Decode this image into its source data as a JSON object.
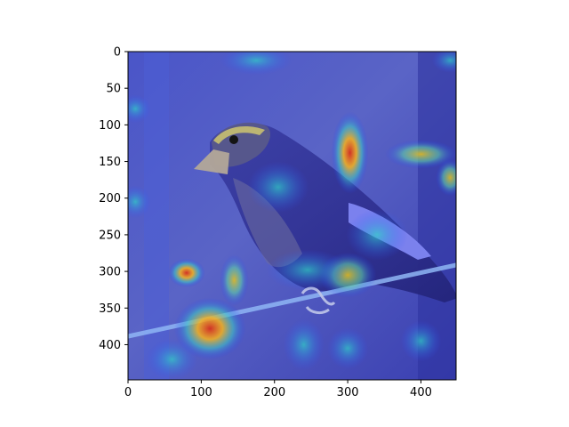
{
  "chart_data": {
    "type": "heatmap",
    "description_kind": "saliency heatmap overlaid on bird photograph (jet colormap, semi-transparent)",
    "colormap": "jet",
    "xlim": [
      0,
      448
    ],
    "ylim": [
      448,
      0
    ],
    "x_ticks": [
      0,
      100,
      200,
      300,
      400
    ],
    "y_ticks": [
      0,
      50,
      100,
      150,
      200,
      250,
      300,
      350,
      400
    ],
    "grid": false,
    "hotspots": [
      {
        "x": 303,
        "y": 138,
        "level": 1.0,
        "rx": 18,
        "ry": 40
      },
      {
        "x": 112,
        "y": 378,
        "level": 0.95,
        "rx": 35,
        "ry": 30
      },
      {
        "x": 80,
        "y": 302,
        "level": 0.85,
        "rx": 18,
        "ry": 14
      },
      {
        "x": 400,
        "y": 140,
        "level": 0.75,
        "rx": 35,
        "ry": 14
      },
      {
        "x": 440,
        "y": 172,
        "level": 0.7,
        "rx": 14,
        "ry": 18
      },
      {
        "x": 300,
        "y": 305,
        "level": 0.6,
        "rx": 28,
        "ry": 22
      },
      {
        "x": 145,
        "y": 312,
        "level": 0.55,
        "rx": 14,
        "ry": 25
      },
      {
        "x": 245,
        "y": 298,
        "level": 0.45,
        "rx": 40,
        "ry": 20
      },
      {
        "x": 205,
        "y": 185,
        "level": 0.4,
        "rx": 30,
        "ry": 25
      },
      {
        "x": 340,
        "y": 250,
        "level": 0.4,
        "rx": 30,
        "ry": 25
      },
      {
        "x": 175,
        "y": 12,
        "level": 0.4,
        "rx": 35,
        "ry": 14
      },
      {
        "x": 10,
        "y": 205,
        "level": 0.4,
        "rx": 15,
        "ry": 16
      },
      {
        "x": 10,
        "y": 78,
        "level": 0.35,
        "rx": 15,
        "ry": 14
      },
      {
        "x": 440,
        "y": 12,
        "level": 0.35,
        "rx": 18,
        "ry": 12
      },
      {
        "x": 400,
        "y": 395,
        "level": 0.35,
        "rx": 20,
        "ry": 20
      },
      {
        "x": 300,
        "y": 405,
        "level": 0.35,
        "rx": 20,
        "ry": 20
      },
      {
        "x": 240,
        "y": 400,
        "level": 0.35,
        "rx": 20,
        "ry": 25
      },
      {
        "x": 60,
        "y": 420,
        "level": 0.3,
        "rx": 25,
        "ry": 20
      }
    ]
  }
}
